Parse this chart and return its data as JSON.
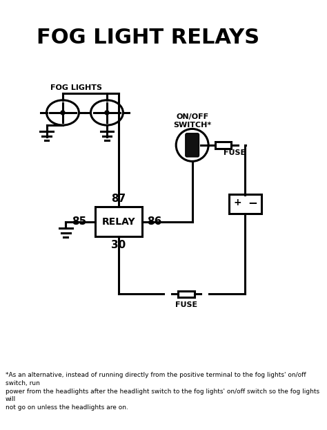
{
  "title": "FOG LIGHT RELAYS",
  "title_fontsize": 22,
  "title_fontweight": "bold",
  "bg_color": "#ffffff",
  "line_color": "#000000",
  "line_width": 2.2,
  "footnote": "*As an alternative, instead of running directly from the positive terminal to the fog lights' on/off switch, run\npower from the headlights after the headlight switch to the fog lights' on/off switch so the fog lights will\nnot go on unless the headlights are on.",
  "footnote_fontsize": 6.5,
  "fog_lights_label": "FOG LIGHTS",
  "switch_label": "ON/OFF\nSWITCH*",
  "fuse_top_label": "FUSE",
  "fuse_bot_label": "FUSE",
  "relay_label": "RELAY",
  "pin85": "85",
  "pin86": "86",
  "pin87": "87",
  "pin30": "30"
}
